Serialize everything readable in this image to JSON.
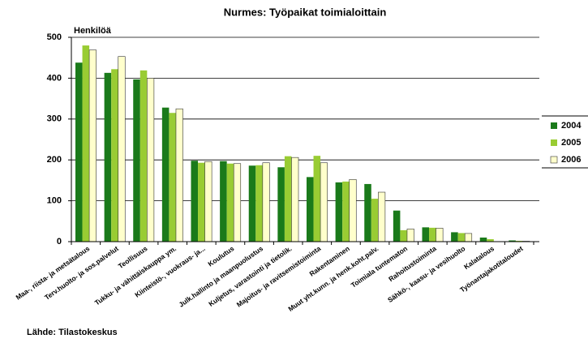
{
  "chart_data": {
    "type": "bar",
    "title": "Nurmes: Työpaikat toimialoittain",
    "y_axis_label": "Henkilöä",
    "source": "Lähde: Tilastokeskus",
    "categories": [
      "Maa-, riista- ja metsätalous",
      "Terv.huolto- ja sos.palvelut",
      "Teollisuus",
      "Tukku- ja vähittäiskauppa ym.",
      "Kiinteistö-, vuokraus- ja...",
      "Koulutus",
      "Julk.hallinto ja maanpuolustus",
      "Kuljetus, varastointi ja tietolik.",
      "Majoitus- ja ravitsemistoiminta",
      "Rakentaminen",
      "Muut yht.kunn. ja henk.koht.palv.",
      "Toimiala tuntematon",
      "Rahoitustoiminta",
      "Sähkö-, kaasu- ja vesihuolto",
      "Kalatalous",
      "Työnantajakotitaloudet"
    ],
    "series": [
      {
        "name": "2004",
        "color": "#1a7a1a",
        "values": [
          438,
          413,
          397,
          328,
          198,
          197,
          186,
          182,
          158,
          145,
          141,
          76,
          35,
          23,
          10,
          3
        ]
      },
      {
        "name": "2005",
        "color": "#99cc33",
        "values": [
          480,
          422,
          419,
          315,
          193,
          191,
          187,
          209,
          210,
          147,
          105,
          28,
          34,
          21,
          6,
          2
        ]
      },
      {
        "name": "2006",
        "color": "#ffffcc",
        "values": [
          469,
          453,
          400,
          325,
          196,
          191,
          193,
          206,
          193,
          152,
          121,
          31,
          33,
          20,
          0,
          1
        ]
      }
    ],
    "ylim": [
      0,
      500
    ],
    "yticks": [
      0,
      100,
      200,
      300,
      400,
      500
    ],
    "grid": true,
    "legend": "right"
  }
}
